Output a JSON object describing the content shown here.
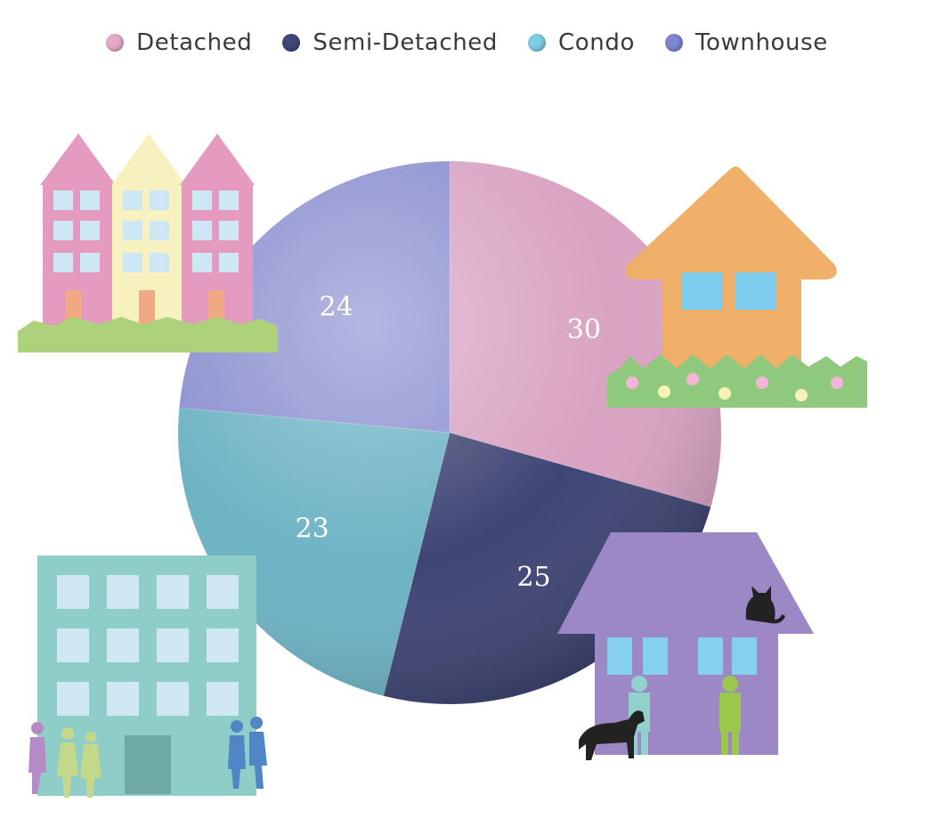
{
  "chart_data": {
    "type": "pie",
    "categories": [
      "Detached",
      "Semi-Detached",
      "Condo",
      "Townhouse"
    ],
    "values": [
      30,
      25,
      23,
      24
    ],
    "colors": [
      "#d9a3c2",
      "#3f4574",
      "#6db3c4",
      "#8b90d0"
    ],
    "legend_colors": [
      "#e4a9c9",
      "#414878",
      "#7ccde6",
      "#7f86cf"
    ],
    "legend_position": "top",
    "start_angle_deg": 0,
    "direction": "clockwise",
    "data_labels": true
  },
  "decorations": {
    "townhouse_row": "townhouse-row-icon",
    "detached_house": "detached-house-icon",
    "apartment_building": "apartment-building-icon",
    "family_house": "family-house-icon"
  }
}
